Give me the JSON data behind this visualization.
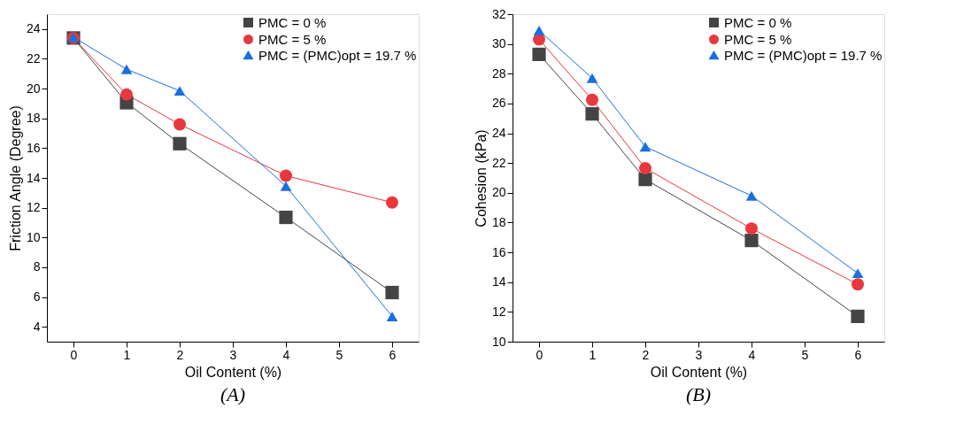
{
  "chart_data": [
    {
      "type": "line",
      "xlabel": "Oil Content (%)",
      "ylabel": "Friction Angle (Degree)",
      "x": [
        0,
        1,
        2,
        4,
        6
      ],
      "xlim": [
        -0.5,
        6.5
      ],
      "xticks": [
        0,
        1,
        2,
        3,
        4,
        5,
        6
      ],
      "ylim": [
        3,
        25
      ],
      "yticks": [
        4,
        6,
        8,
        10,
        12,
        14,
        16,
        18,
        20,
        22,
        24
      ],
      "grid": false,
      "legend": "top right",
      "annotations": [
        "(A)"
      ],
      "series": [
        {
          "name": "PMC = 0 %",
          "color": "#444444",
          "marker": "square",
          "values": [
            23.4,
            19.05,
            16.3,
            11.35,
            6.3
          ]
        },
        {
          "name": "PMC = 5 %",
          "color": "#e8383d",
          "marker": "circle",
          "values": [
            23.4,
            19.6,
            17.6,
            14.15,
            12.35
          ]
        },
        {
          "name": "PMC = (PMC)opt = 19.7 %",
          "color": "#1a6fdf",
          "marker": "triangle",
          "values": [
            23.45,
            21.3,
            19.85,
            13.45,
            4.7
          ]
        }
      ]
    },
    {
      "type": "line",
      "xlabel": "Oil Content (%)",
      "ylabel": "Cohesion (kPa)",
      "x": [
        0,
        1,
        2,
        4,
        6
      ],
      "xlim": [
        -0.5,
        6.5
      ],
      "xticks": [
        0,
        1,
        2,
        3,
        4,
        5,
        6
      ],
      "ylim": [
        10,
        32
      ],
      "yticks": [
        10,
        12,
        14,
        16,
        18,
        20,
        22,
        24,
        26,
        28,
        30,
        32
      ],
      "grid": false,
      "legend": "top right",
      "annotations": [
        "(B)"
      ],
      "series": [
        {
          "name": "PMC = 0 %",
          "color": "#444444",
          "marker": "square",
          "values": [
            29.3,
            25.3,
            20.9,
            16.8,
            11.7
          ]
        },
        {
          "name": "PMC = 5 %",
          "color": "#e8383d",
          "marker": "circle",
          "values": [
            30.3,
            26.25,
            21.65,
            17.6,
            13.85
          ]
        },
        {
          "name": "PMC = (PMC)opt = 19.7 %",
          "color": "#1a6fdf",
          "marker": "triangle",
          "values": [
            30.9,
            27.7,
            23.1,
            19.8,
            14.6
          ]
        }
      ]
    }
  ]
}
